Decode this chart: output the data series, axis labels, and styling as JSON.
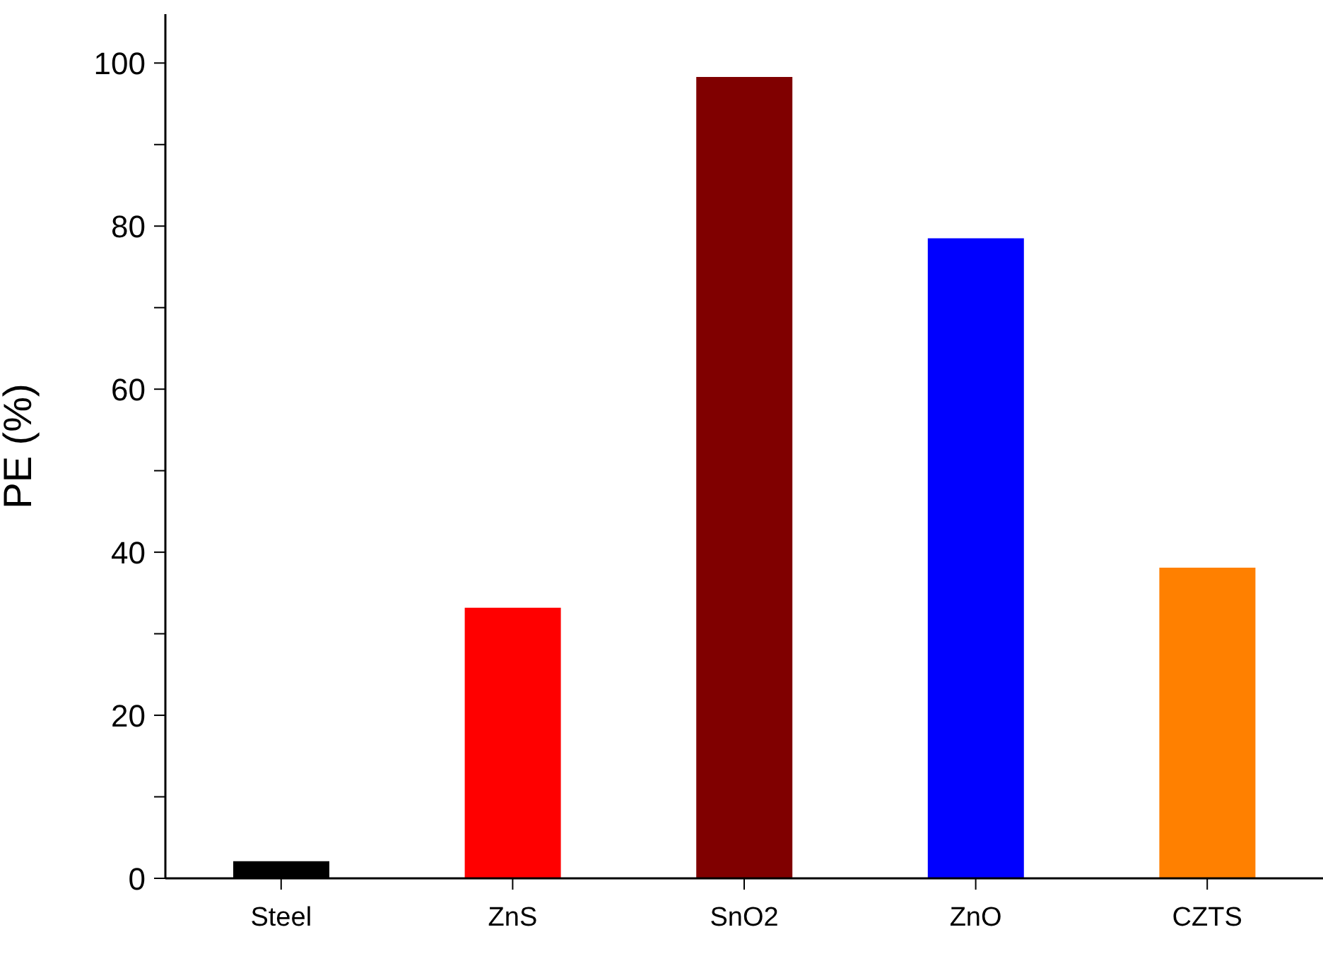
{
  "chart_data": {
    "type": "bar",
    "ylabel": "PE (%)",
    "categories": [
      "Steel",
      "ZnS",
      "SnO2",
      "ZnO",
      "CZTS"
    ],
    "values": [
      2.1,
      33.2,
      98.3,
      78.5,
      38.1
    ],
    "colors": [
      "#000000",
      "#ff0000",
      "#800000",
      "#0000ff",
      "#ff8000"
    ],
    "ylim": [
      0,
      106
    ],
    "yticks": [
      0,
      {
        "value": 10,
        "label": null
      },
      20,
      {
        "value": 30,
        "label": null
      },
      40,
      {
        "value": 50,
        "label": null
      },
      60,
      {
        "value": 70,
        "label": null
      },
      80,
      {
        "value": 90,
        "label": null
      },
      100
    ],
    "grid": false,
    "legend": false
  }
}
